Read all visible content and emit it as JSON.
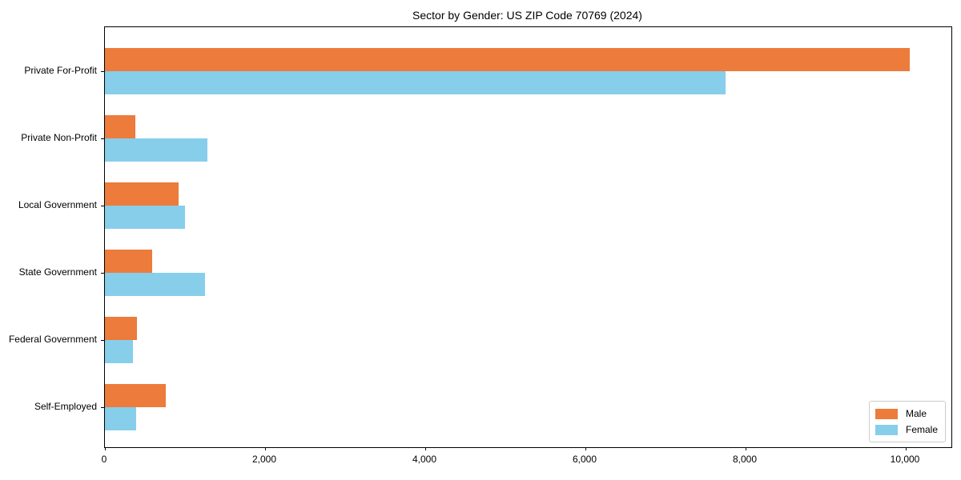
{
  "chart_data": {
    "type": "bar",
    "orientation": "horizontal",
    "title": "Sector by Gender: US ZIP Code 70769 (2024)",
    "categories": [
      "Private For-Profit",
      "Private Non-Profit",
      "Local Government",
      "State Government",
      "Federal Government",
      "Self-Employed"
    ],
    "series": [
      {
        "name": "Male",
        "color": "#EC7B3C",
        "values": [
          10050,
          380,
          920,
          590,
          400,
          760
        ]
      },
      {
        "name": "Female",
        "color": "#87CEEB",
        "values": [
          7750,
          1280,
          1000,
          1250,
          350,
          390
        ]
      }
    ],
    "x_ticks": [
      {
        "value": 0,
        "label": "0"
      },
      {
        "value": 2000,
        "label": "2,000"
      },
      {
        "value": 4000,
        "label": "4,000"
      },
      {
        "value": 6000,
        "label": "6,000"
      },
      {
        "value": 8000,
        "label": "8,000"
      },
      {
        "value": 10000,
        "label": "10,000"
      }
    ],
    "xlim": [
      0,
      10570
    ],
    "grid": false,
    "legend": {
      "position": "lower right"
    }
  },
  "colors": {
    "axis": "#000000",
    "legend_border": "#cccccc",
    "background": "#ffffff"
  }
}
